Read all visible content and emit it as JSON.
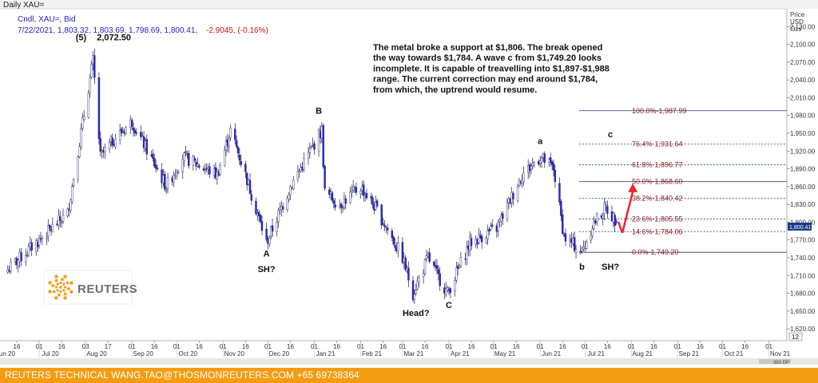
{
  "header": {
    "window_title": "Daily XAU=",
    "series_label": "Cndl, XAU=, Bid",
    "ohlc_line": "7/22/2021, 1,803.32, 1,803.69, 1,798.69, 1,800.41,",
    "change_text": "-2.9045, (-0.16%)",
    "axis_unit_lines": [
      "Price",
      "USD",
      "Ozs"
    ],
    "last_price_tag": "1,800.41",
    "scroll_box": "12",
    "bottom_right": "383 DP"
  },
  "commentary": [
    "The metal broke a support at $1,806. The break opened",
    "the way towards $1,784. A wave c from $1,749.20 looks",
    "incomplete. It is capable of treavelling into $1,897-$1,988",
    "range. The current correction may end around $1,784,",
    "from which, the uptrend would resume."
  ],
  "logo_text": "REUTERS",
  "footer_text": "REUTERS TECHNICAL  WANG.TAO@THOSMONREUTERS.COM  +65 69738364",
  "colors": {
    "up_candle": "#ffffff",
    "down_candle": "#2a2ad0",
    "fib_line": "#1a3d8f",
    "fib_text": "#8b1a1a",
    "arrow": "#e8262c",
    "footer_bg": "#f39c12",
    "header_blue": "#1f1fbf",
    "header_red": "#d01010"
  },
  "chart_data": {
    "type": "candlestick",
    "ylim": [
      1600,
      2160
    ],
    "y_ticks": [
      "1,620.00",
      "1,650.00",
      "1,680.00",
      "1,710.00",
      "1,740.00",
      "1,770.00",
      "1,800.00",
      "1,830.00",
      "1,860.00",
      "1,890.00",
      "1,920.00",
      "1,950.00",
      "1,980.00",
      "2,010.00",
      "2,040.00",
      "2,070.00",
      "2,100.00",
      "2,130.00"
    ],
    "y_tick_values": [
      1620,
      1650,
      1680,
      1710,
      1740,
      1770,
      1800,
      1830,
      1860,
      1890,
      1920,
      1950,
      1980,
      2010,
      2040,
      2070,
      2100,
      2130
    ],
    "x_day_labels": [
      "16",
      "01",
      "16",
      "03",
      "17",
      "01",
      "16",
      "01",
      "16",
      "01",
      "16",
      "01",
      "16",
      "01",
      "16",
      "01",
      "16",
      "01",
      "16",
      "01",
      "16",
      "01",
      "16",
      "01",
      "16",
      "01",
      "16",
      "01",
      "16",
      "01",
      "16",
      "01",
      "16",
      "01",
      "16",
      "01",
      "16",
      "01",
      "16",
      "01",
      "16",
      "01"
    ],
    "x_month_labels": [
      "Jun 20",
      "Jul 20",
      "Aug 20",
      "Sep 20",
      "Oct 20",
      "Nov 20",
      "Dec 20",
      "Jan 21",
      "Feb 21",
      "Mar 21",
      "Apr 21",
      "May 21",
      "Jun 21",
      "Jul 21",
      "Aug 21",
      "Sep 21",
      "Oct 21",
      "Nov 21"
    ],
    "anchors": [
      {
        "date": "2020-06-10",
        "close": 1720
      },
      {
        "date": "2020-07-01",
        "close": 1770
      },
      {
        "date": "2020-07-20",
        "close": 1815
      },
      {
        "date": "2020-08-06",
        "close": 2072.5
      },
      {
        "date": "2020-08-11",
        "close": 1910
      },
      {
        "date": "2020-08-20",
        "close": 1940
      },
      {
        "date": "2020-09-01",
        "close": 1970
      },
      {
        "date": "2020-09-24",
        "close": 1860
      },
      {
        "date": "2020-10-05",
        "close": 1910
      },
      {
        "date": "2020-10-28",
        "close": 1880
      },
      {
        "date": "2020-11-06",
        "close": 1955
      },
      {
        "date": "2020-11-16",
        "close": 1880
      },
      {
        "date": "2020-11-30",
        "close": 1765
      },
      {
        "date": "2020-12-16",
        "close": 1860
      },
      {
        "date": "2021-01-06",
        "close": 1955
      },
      {
        "date": "2021-01-08",
        "close": 1850
      },
      {
        "date": "2021-01-18",
        "close": 1830
      },
      {
        "date": "2021-02-01",
        "close": 1860
      },
      {
        "date": "2021-02-12",
        "close": 1820
      },
      {
        "date": "2021-03-01",
        "close": 1740
      },
      {
        "date": "2021-03-08",
        "close": 1680
      },
      {
        "date": "2021-03-18",
        "close": 1740
      },
      {
        "date": "2021-03-31",
        "close": 1680
      },
      {
        "date": "2021-04-15",
        "close": 1765
      },
      {
        "date": "2021-05-03",
        "close": 1790
      },
      {
        "date": "2021-05-20",
        "close": 1880
      },
      {
        "date": "2021-06-01",
        "close": 1910
      },
      {
        "date": "2021-06-10",
        "close": 1890
      },
      {
        "date": "2021-06-17",
        "close": 1775
      },
      {
        "date": "2021-06-29",
        "close": 1750
      },
      {
        "date": "2021-07-06",
        "close": 1795
      },
      {
        "date": "2021-07-15",
        "close": 1825
      },
      {
        "date": "2021-07-22",
        "close": 1800.41
      }
    ],
    "wave_labels": [
      {
        "text": "(5)",
        "date": "2020-07-29",
        "price": 2107
      },
      {
        "text": "2,072.50",
        "date": "2020-08-20",
        "price": 2107
      },
      {
        "text": "B",
        "date": "2021-01-04",
        "price": 1983
      },
      {
        "text": "A",
        "date": "2020-11-30",
        "price": 1742
      },
      {
        "text": "SH?",
        "date": "2020-11-30",
        "price": 1716
      },
      {
        "text": "Head?",
        "date": "2021-03-10",
        "price": 1642
      },
      {
        "text": "C",
        "date": "2021-04-01",
        "price": 1655
      },
      {
        "text": "a",
        "date": "2021-06-01",
        "price": 1932
      },
      {
        "text": "c",
        "date": "2021-07-18",
        "price": 1943
      },
      {
        "text": "b",
        "date": "2021-06-29",
        "price": 1720
      },
      {
        "text": "SH?",
        "date": "2021-07-18",
        "price": 1720
      }
    ],
    "fib_levels": [
      {
        "label": "100.0%-1,987.99",
        "price": 1987.99
      },
      {
        "label": "76.4%-1,931.64",
        "price": 1931.64
      },
      {
        "label": "61.8%-1,896.77",
        "price": 1896.77
      },
      {
        "label": "50.0%-1,868.60",
        "price": 1868.6
      },
      {
        "label": "38.2%-1,840.42",
        "price": 1840.42
      },
      {
        "label": "23.6%-1,805.55",
        "price": 1805.55
      },
      {
        "label": "14.6%-1,784.06",
        "price": 1784.06
      },
      {
        "label": "0.0%-1,749.20",
        "price": 1749.2
      }
    ],
    "fib_start_date": "2021-06-27",
    "arrow": {
      "from_date": "2021-07-26",
      "from_price": 1782,
      "to_date": "2021-08-02",
      "to_price": 1860
    }
  }
}
